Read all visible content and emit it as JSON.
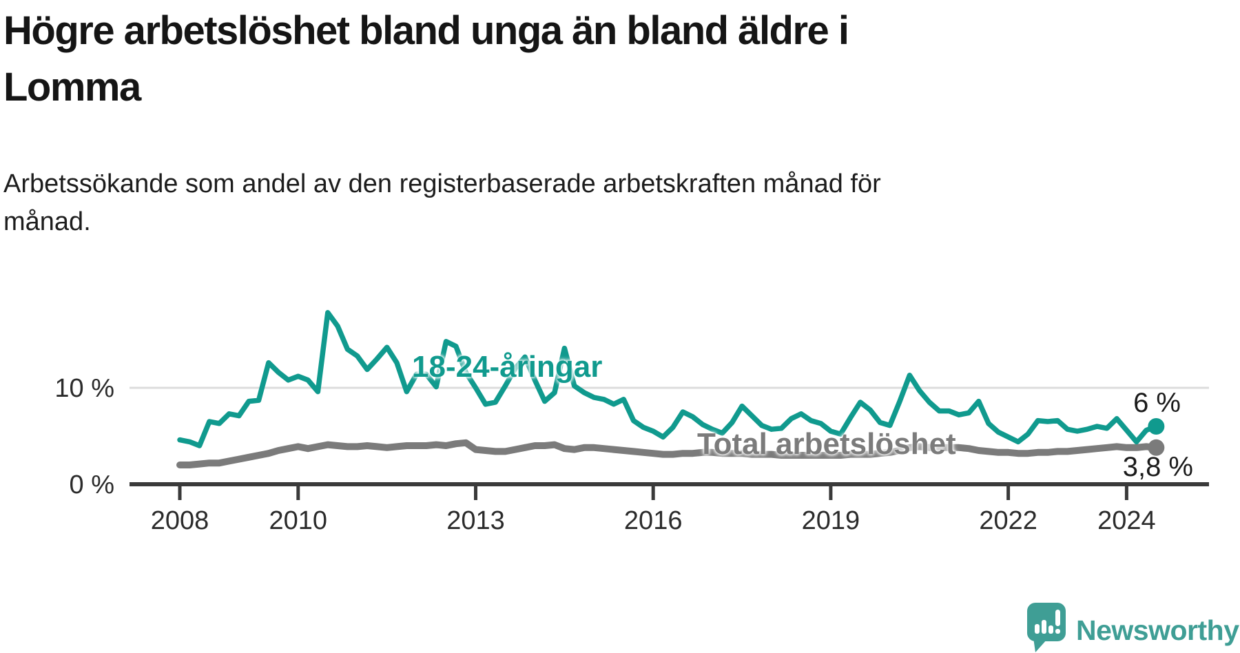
{
  "header": {
    "title_line1": "Högre arbetslöshet bland unga än bland äldre i",
    "title_line2": "Lomma",
    "subtitle_line1": "Arbetssökande som andel av den registerbaserade arbetskraften månad för",
    "subtitle_line2": "månad."
  },
  "footer": {
    "brand": "Newsworthy",
    "brand_color": "#3f9e95"
  },
  "chart_data": {
    "type": "line",
    "title": "Högre arbetslöshet bland unga än bland äldre i Lomma",
    "subtitle": "Arbetssökande som andel av den registerbaserade arbetskraften månad för månad.",
    "unit": "%",
    "grid": "horizontal-10-only",
    "legend_position": "inline-annotations",
    "x_start_year": 2008,
    "x_interval_months": 2,
    "x_axis": {
      "tick_years": [
        2008,
        2010,
        2013,
        2016,
        2019,
        2022,
        2024
      ],
      "tick_labels": [
        "2008",
        "2010",
        "2013",
        "2016",
        "2019",
        "2022",
        "2024"
      ]
    },
    "y_axis": {
      "ticks": [
        0,
        10
      ],
      "tick_labels": [
        "0 %",
        "10 %"
      ],
      "range": [
        0,
        19
      ]
    },
    "series": [
      {
        "name": "18-24-åringar",
        "color": "#109a8e",
        "end_label": "6 %",
        "end_value": 6.0,
        "values": [
          4.6,
          4.4,
          4.0,
          6.5,
          6.3,
          7.3,
          7.1,
          8.6,
          8.7,
          12.6,
          11.6,
          10.8,
          11.2,
          10.8,
          9.6,
          17.8,
          16.4,
          14.0,
          13.3,
          11.9,
          13.0,
          14.2,
          12.6,
          9.6,
          11.4,
          11.4,
          10.1,
          14.8,
          14.3,
          11.6,
          10.0,
          8.3,
          8.5,
          10.2,
          12.0,
          13.2,
          10.8,
          8.6,
          9.5,
          14.1,
          10.2,
          9.5,
          9.0,
          8.8,
          8.3,
          8.8,
          6.6,
          5.9,
          5.5,
          4.9,
          5.9,
          7.5,
          7.0,
          6.2,
          5.7,
          5.3,
          6.4,
          8.1,
          7.1,
          6.1,
          5.7,
          5.8,
          6.8,
          7.3,
          6.6,
          6.3,
          5.5,
          5.2,
          6.9,
          8.5,
          7.7,
          6.4,
          6.1,
          8.6,
          11.3,
          9.7,
          8.5,
          7.6,
          7.6,
          7.2,
          7.4,
          8.6,
          6.3,
          5.4,
          4.9,
          4.4,
          5.2,
          6.6,
          6.5,
          6.6,
          5.7,
          5.5,
          5.7,
          6.0,
          5.8,
          6.8,
          5.6,
          4.4,
          5.6,
          6.0
        ]
      },
      {
        "name": "Total arbetslöshet",
        "color": "#7b7b7b",
        "end_label": "3,8 %",
        "end_value": 3.8,
        "values": [
          2.0,
          2.0,
          2.1,
          2.2,
          2.2,
          2.4,
          2.6,
          2.8,
          3.0,
          3.2,
          3.5,
          3.7,
          3.9,
          3.7,
          3.9,
          4.1,
          4.0,
          3.9,
          3.9,
          4.0,
          3.9,
          3.8,
          3.9,
          4.0,
          4.0,
          4.0,
          4.1,
          4.0,
          4.2,
          4.3,
          3.6,
          3.5,
          3.4,
          3.4,
          3.6,
          3.8,
          4.0,
          4.0,
          4.1,
          3.7,
          3.6,
          3.8,
          3.8,
          3.7,
          3.6,
          3.5,
          3.4,
          3.3,
          3.2,
          3.1,
          3.1,
          3.2,
          3.2,
          3.3,
          3.3,
          3.2,
          3.2,
          3.2,
          3.1,
          3.1,
          3.1,
          3.0,
          3.0,
          3.0,
          3.0,
          3.0,
          3.0,
          3.0,
          3.1,
          3.1,
          3.1,
          3.2,
          3.3,
          3.5,
          3.8,
          3.9,
          3.8,
          3.8,
          3.8,
          3.8,
          3.7,
          3.5,
          3.4,
          3.3,
          3.3,
          3.2,
          3.2,
          3.3,
          3.3,
          3.4,
          3.4,
          3.5,
          3.6,
          3.7,
          3.8,
          3.9,
          3.8,
          3.8,
          3.9,
          3.8
        ]
      }
    ],
    "colors": {
      "axis": "#3a3a3a",
      "gridline": "#dcdcdc",
      "tick_label": "#2b2b2b",
      "value_label": "#1a1a1a"
    }
  }
}
